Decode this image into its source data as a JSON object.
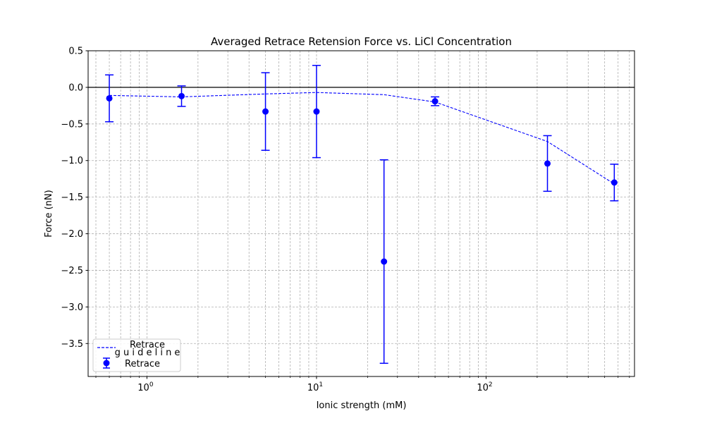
{
  "chart_data": {
    "type": "scatter",
    "title": "Averaged Retrace Retension Force vs. LiCl Concentration",
    "xlabel": "Ionic strength (mM)",
    "ylabel": "Force (nN)",
    "xscale": "log",
    "xlim": [
      0.45,
      750
    ],
    "ylim": [
      -3.95,
      0.5
    ],
    "grid": true,
    "x_ticks": [
      {
        "value": 1,
        "base": "10",
        "exp": "0"
      },
      {
        "value": 10,
        "base": "10",
        "exp": "1"
      },
      {
        "value": 100,
        "base": "10",
        "exp": "2"
      }
    ],
    "y_ticks": [
      0.5,
      0.0,
      -0.5,
      -1.0,
      -1.5,
      -2.0,
      -2.5,
      -3.0,
      -3.5
    ],
    "y_tick_labels": [
      "0.5",
      "0.0",
      "−0.5",
      "−1.0",
      "−1.5",
      "−2.0",
      "−2.5",
      "−3.0",
      "−3.5"
    ],
    "zero_line": 0,
    "series": [
      {
        "name": "Retrace",
        "kind": "errorbar",
        "color": "#0000ff",
        "x": [
          0.6,
          1.6,
          5,
          10,
          25,
          50,
          230,
          570
        ],
        "y": [
          -0.15,
          -0.12,
          -0.33,
          -0.33,
          -2.38,
          -0.19,
          -1.04,
          -1.3
        ],
        "yerr": [
          0.32,
          0.14,
          0.53,
          0.63,
          1.39,
          0.06,
          0.38,
          0.25
        ]
      },
      {
        "name": "Retrace guideline",
        "kind": "line",
        "style": "dashed",
        "color": "#0000ff",
        "x": [
          0.6,
          1.6,
          5,
          10,
          25,
          50,
          230,
          570
        ],
        "y": [
          -0.11,
          -0.13,
          -0.09,
          -0.07,
          -0.1,
          -0.2,
          -0.74,
          -1.32
        ]
      }
    ],
    "legend": {
      "position": "bottom-left",
      "items": [
        {
          "line1": "Retrace",
          "line2": "g u i d e l i n e",
          "kind": "line"
        },
        {
          "line1": "Retrace",
          "kind": "errorbar"
        }
      ]
    }
  }
}
